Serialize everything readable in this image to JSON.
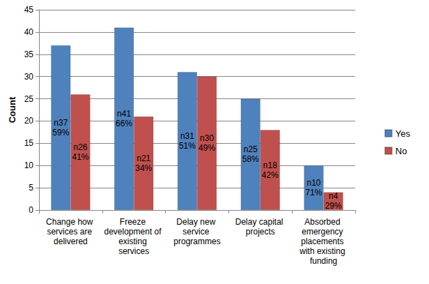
{
  "chart_data": {
    "type": "bar",
    "y_label": "Count",
    "categories": [
      "Change how services are delivered",
      "Freeze development of existing services",
      "Delay new service programmes",
      "Delay capital projects",
      "Absorbed emergency placements with existing funding"
    ],
    "series": [
      {
        "name": "Yes",
        "color": "#4f81bd",
        "values": [
          37,
          41,
          31,
          25,
          10
        ],
        "value_labels": [
          "n37\n59%",
          "n41\n66%",
          "n31\n51%",
          "n25\n58%",
          "n10\n71%"
        ]
      },
      {
        "name": "No",
        "color": "#c0504d",
        "values": [
          26,
          21,
          30,
          18,
          4
        ],
        "value_labels": [
          "n26\n41%",
          "n21\n34%",
          "n30\n49%",
          "n18\n42%",
          "n4\n29%"
        ]
      }
    ],
    "ylim": [
      0,
      45
    ],
    "yticks": [
      0,
      5,
      10,
      15,
      20,
      25,
      30,
      35,
      40,
      45
    ],
    "grid": true,
    "legend": "right",
    "data_labels": true
  }
}
